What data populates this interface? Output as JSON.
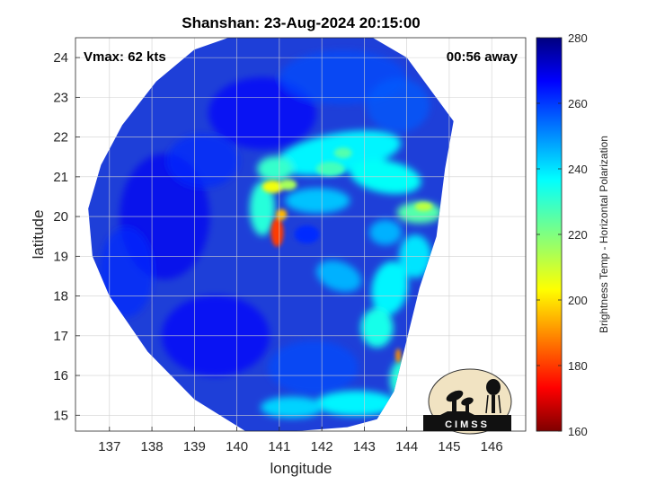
{
  "chart_data": {
    "type": "heatmap",
    "title": "Shanshan: 23-Aug-2024 20:15:00",
    "xlabel": "longitude",
    "ylabel": "latitude",
    "xlim": [
      136.2,
      146.8
    ],
    "ylim": [
      14.6,
      24.5
    ],
    "xticks": [
      "137",
      "138",
      "139",
      "140",
      "141",
      "142",
      "143",
      "144",
      "145",
      "146"
    ],
    "yticks": [
      "15",
      "16",
      "17",
      "18",
      "19",
      "20",
      "21",
      "22",
      "23",
      "24"
    ],
    "grid": true,
    "annotations": {
      "top_left": "Vmax: 62 kts",
      "top_right": "00:56 away"
    },
    "storm_center": [
      141.4,
      19.45
    ],
    "colorbar": {
      "label": "Brightness Temp - Horizontal Polarization",
      "range": [
        160,
        280
      ],
      "ticks": [
        "160",
        "180",
        "200",
        "220",
        "240",
        "260",
        "280"
      ],
      "colormap": "jet",
      "position": "right"
    },
    "features": [
      {
        "name": "eyewall-west",
        "lon": 140.95,
        "lat": 19.6,
        "value": 178
      },
      {
        "name": "eyewall-northwest",
        "lon": 140.8,
        "lat": 20.8,
        "value": 200
      },
      {
        "name": "eye",
        "lon": 141.6,
        "lat": 19.55,
        "value": 262
      },
      {
        "name": "spiral-band-north",
        "lon": 142.5,
        "lat": 21.4,
        "value": 232
      },
      {
        "name": "band-east",
        "lon": 144.4,
        "lat": 20.2,
        "value": 212
      },
      {
        "name": "band-south",
        "lon": 143.4,
        "lat": 17.3,
        "value": 232
      },
      {
        "name": "south-cells",
        "lon": 142.2,
        "lat": 15.2,
        "value": 236
      },
      {
        "name": "east-edge-cell",
        "lon": 143.8,
        "lat": 16.5,
        "value": 188
      }
    ]
  },
  "logo": {
    "text": "CIMSS"
  }
}
